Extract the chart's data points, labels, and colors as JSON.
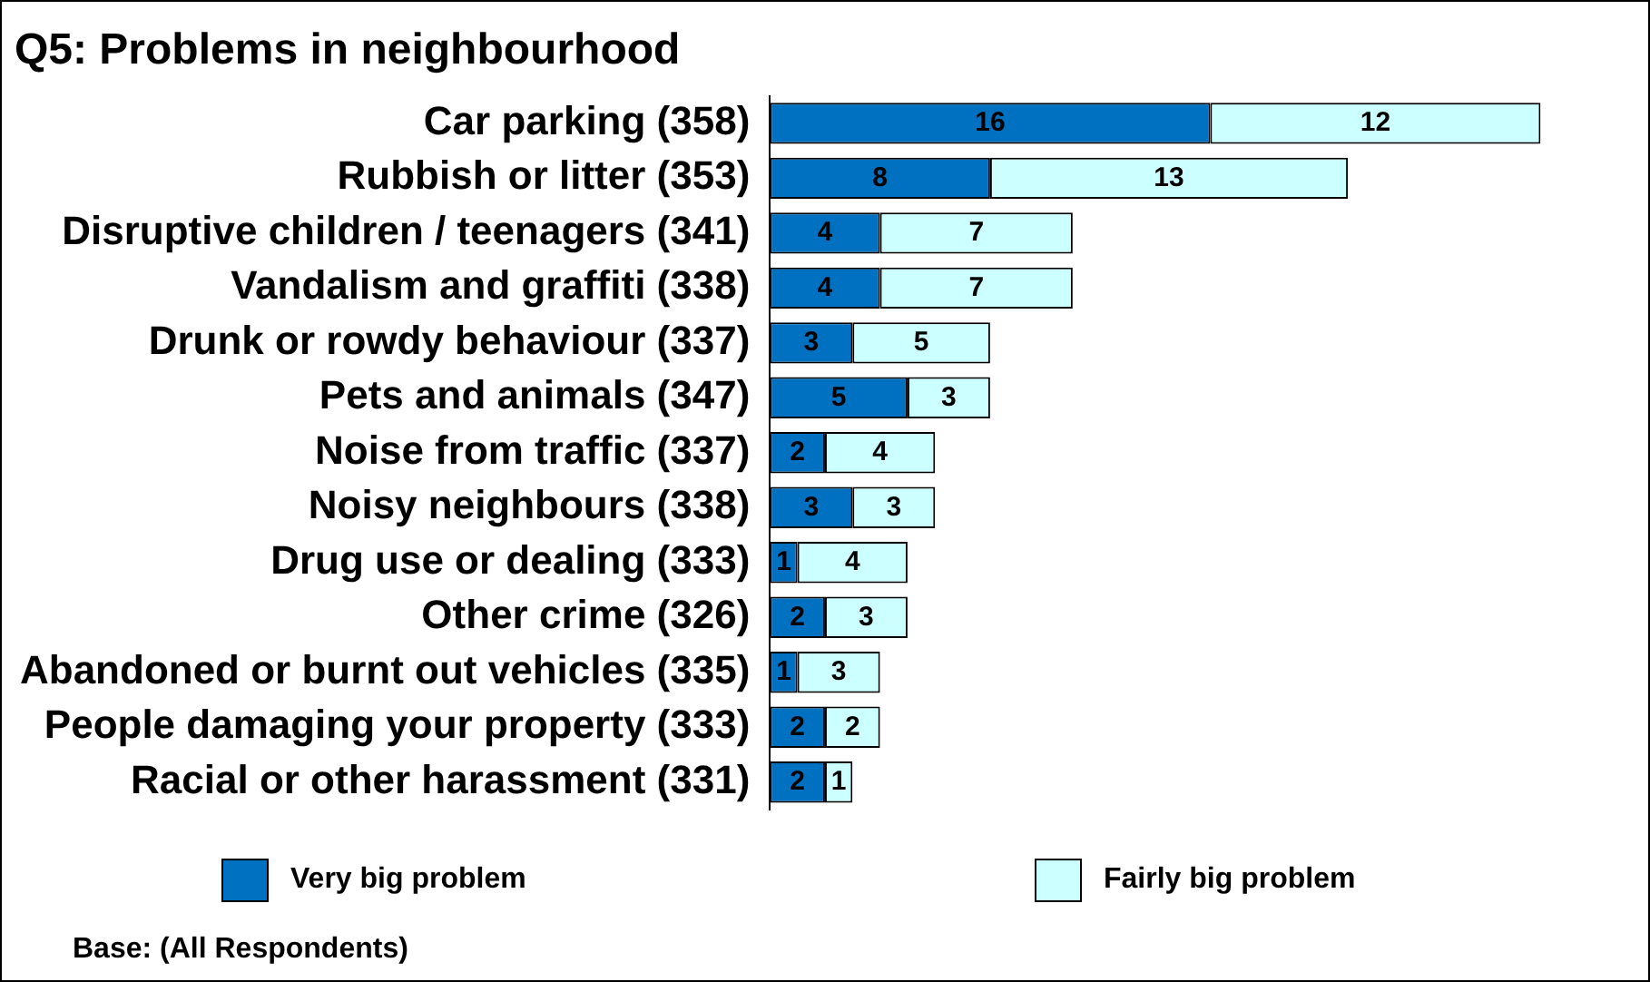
{
  "chart_data": {
    "type": "bar",
    "orientation": "horizontal",
    "stacked": true,
    "title": "Q5: Problems in neighbourhood",
    "categories": [
      "Car parking (358)",
      "Rubbish or litter (353)",
      "Disruptive children / teenagers (341)",
      "Vandalism and graffiti (338)",
      "Drunk or rowdy behaviour (337)",
      "Pets and animals (347)",
      "Noise from traffic (337)",
      "Noisy neighbours (338)",
      "Drug use or dealing (333)",
      "Other crime (326)",
      "Abandoned or burnt out vehicles (335)",
      "People damaging your property (333)",
      "Racial or other harassment (331)"
    ],
    "series": [
      {
        "name": "Very big  problem",
        "color": "#0070c0",
        "values": [
          16,
          8,
          4,
          4,
          3,
          5,
          2,
          3,
          1,
          2,
          1,
          2,
          2
        ]
      },
      {
        "name": "Fairly big problem",
        "color": "#ccffff",
        "values": [
          12,
          13,
          7,
          7,
          5,
          3,
          4,
          3,
          4,
          3,
          3,
          2,
          1
        ]
      }
    ],
    "data_labels": true,
    "legend": "bottom",
    "annotations": [
      "Base: (All Respondents)"
    ]
  }
}
